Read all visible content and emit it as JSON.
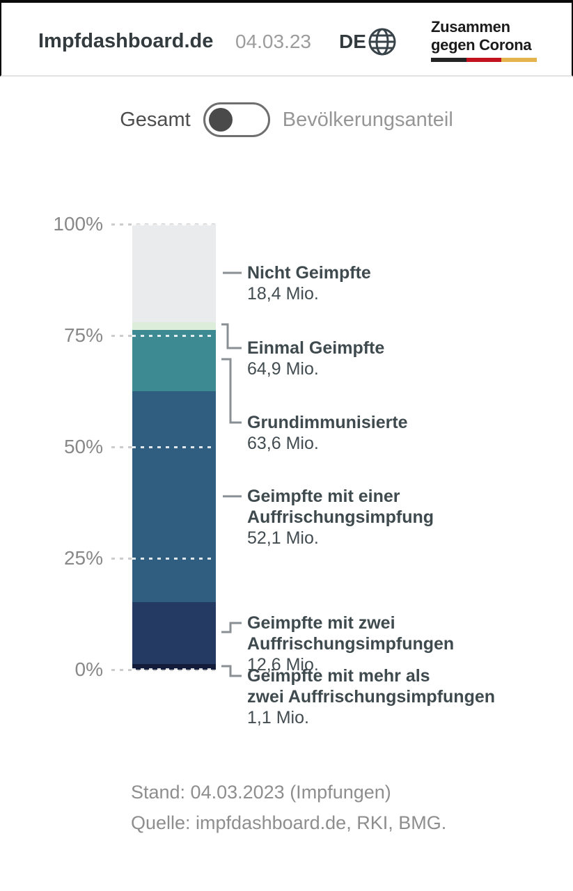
{
  "header": {
    "title": "Impfdashboard.de",
    "date": "04.03.23",
    "language": "DE",
    "logo_line1": "Zusammen",
    "logo_line2": "gegen Corona",
    "flag_colors": [
      "#242424",
      "#c2121f",
      "#e4b34d"
    ]
  },
  "toggle": {
    "left_label": "Gesamt",
    "right_label": "Bevölkerungsanteil",
    "selected": "Gesamt"
  },
  "chart_data": {
    "type": "bar",
    "stacked": true,
    "orientation": "vertical",
    "unit": "Mio.",
    "y_axis": {
      "ticks": [
        "100%",
        "75%",
        "50%",
        "25%",
        "0%"
      ],
      "range": [
        0,
        100
      ],
      "gridlines": "dotted"
    },
    "series": [
      {
        "name": "Nicht Geimpfte",
        "value_mio": 18.4,
        "segment_percent": 22.1,
        "color": "#e9ebec"
      },
      {
        "name": "Einmal Geimpfte",
        "value_mio": 64.9,
        "segment_percent": 1.6,
        "color": "#dcedda"
      },
      {
        "name": "Grundimmunisierte",
        "value_mio": 63.6,
        "segment_percent": 13.8,
        "color": "#3d8a93"
      },
      {
        "name": "Geimpfte mit einer Auffrischungsimpfung",
        "value_mio": 52.1,
        "segment_percent": 47.4,
        "color": "#2f5e80"
      },
      {
        "name": "Geimpfte mit zwei Auffrischungsimpfungen",
        "value_mio": 12.6,
        "segment_percent": 13.8,
        "color": "#253a62"
      },
      {
        "name": "Geimpfte mit mehr als zwei Auffrischungsimpfungen",
        "value_mio": 1.1,
        "segment_percent": 1.3,
        "color": "#131c38"
      }
    ],
    "callouts": [
      {
        "title": "Nicht Geimpfte",
        "value": "18,4 Mio."
      },
      {
        "title": "Einmal Geimpfte",
        "value": "64,9 Mio."
      },
      {
        "title": "Grundimmunisierte",
        "value": "63,6 Mio."
      },
      {
        "title": "Geimpfte mit einer\nAuffrischungsimpfung",
        "value": "52,1 Mio."
      },
      {
        "title": "Geimpfte mit zwei\nAuffrischungsimpfungen",
        "value": "12,6 Mio."
      },
      {
        "title": "Geimpfte mit mehr als\nzwei Auffrischungsimpfungen",
        "value": "1,1 Mio."
      }
    ]
  },
  "footer": {
    "stand": "Stand: 04.03.2023 (Impfungen)",
    "quelle": "Quelle: impfdashboard.de, RKI, BMG."
  }
}
